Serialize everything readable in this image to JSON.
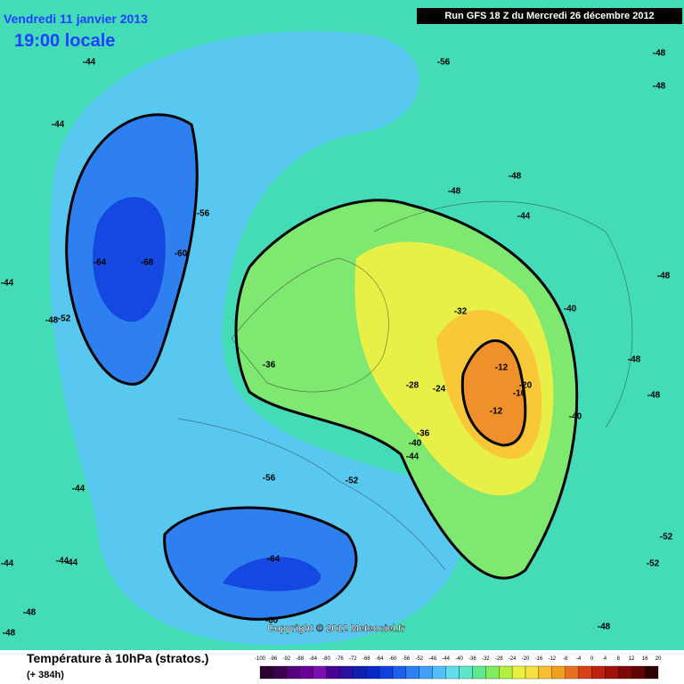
{
  "header": {
    "date": "Vendredi 11 janvier 2013",
    "time": "19:00 locale",
    "run": "Run GFS 18 Z du Mercredi 26 décembre 2012"
  },
  "footer": {
    "title": "Température à 10hPa (stratos.)",
    "lead": "(+ 384h)",
    "copyright": "Copyright © 2012 Meteociel.fr"
  },
  "legend": {
    "ticks": [
      -100,
      -96,
      -92,
      -88,
      -84,
      -80,
      -76,
      -72,
      -68,
      -64,
      -60,
      -56,
      -52,
      -48,
      -44,
      -40,
      -36,
      -32,
      -28,
      -24,
      -20,
      -16,
      -12,
      -8,
      -4,
      0,
      4,
      8,
      12,
      16,
      20
    ],
    "colors": [
      "#2a0030",
      "#3c0050",
      "#55007a",
      "#6a0095",
      "#7a10b0",
      "#4a0090",
      "#2a10a0",
      "#1020b0",
      "#0a28c8",
      "#1040e0",
      "#1e60ee",
      "#2d80f4",
      "#40a0f8",
      "#52c0f8",
      "#60dcf0",
      "#5ae8c8",
      "#60e890",
      "#80ec60",
      "#b0f040",
      "#e8f040",
      "#f8e040",
      "#f8c030",
      "#f0a020",
      "#e87020",
      "#d84018",
      "#c02010",
      "#a01008",
      "#800808",
      "#600404",
      "#300000"
    ]
  },
  "contour_labels": [
    -44,
    -56,
    -48,
    -48,
    -44,
    -48,
    -48,
    -44,
    -56,
    -64,
    -68,
    -60,
    -44,
    -48,
    -48,
    -52,
    -32,
    -40,
    -36,
    -12,
    -28,
    -24,
    -20,
    -16,
    -12,
    -40,
    -48,
    -48,
    -36,
    -40,
    -44,
    -56,
    -52,
    -44,
    -52,
    -52,
    -64,
    -44,
    -44,
    -44,
    -48,
    -48,
    -60,
    -48
  ]
}
